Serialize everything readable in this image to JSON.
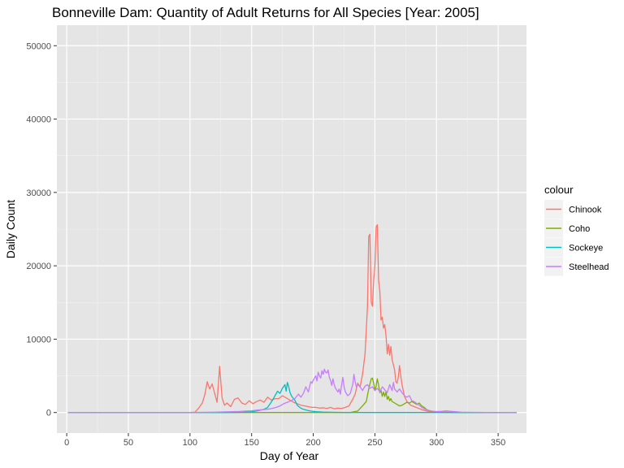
{
  "chart_data": {
    "type": "line",
    "title": "Bonneville Dam: Quantity of Adult Returns for All Species [Year: 2005]",
    "xlabel": "Day of Year",
    "ylabel": "Daily Count",
    "xlim": [
      -8,
      373
    ],
    "ylim": [
      -2800,
      52800
    ],
    "x_ticks": [
      0,
      50,
      100,
      150,
      200,
      250,
      300,
      350
    ],
    "y_ticks": [
      0,
      10000,
      20000,
      30000,
      40000,
      50000
    ],
    "grid": true,
    "background": "#e5e5e5",
    "legend": {
      "title": "colour",
      "position": "right"
    },
    "series": [
      {
        "name": "Chinook",
        "color": "#f8766d",
        "points": [
          [
            1,
            0
          ],
          [
            100,
            0
          ],
          [
            104,
            50
          ],
          [
            107,
            600
          ],
          [
            110,
            1300
          ],
          [
            112,
            2400
          ],
          [
            114,
            4200
          ],
          [
            116,
            3200
          ],
          [
            118,
            3900
          ],
          [
            120,
            2600
          ],
          [
            122,
            1400
          ],
          [
            124,
            6300
          ],
          [
            126,
            2000
          ],
          [
            128,
            1000
          ],
          [
            130,
            1300
          ],
          [
            133,
            800
          ],
          [
            136,
            1800
          ],
          [
            139,
            2000
          ],
          [
            142,
            1300
          ],
          [
            145,
            1100
          ],
          [
            148,
            1600
          ],
          [
            151,
            1200
          ],
          [
            154,
            1500
          ],
          [
            157,
            1700
          ],
          [
            160,
            1400
          ],
          [
            163,
            2100
          ],
          [
            166,
            1700
          ],
          [
            169,
            1900
          ],
          [
            172,
            1900
          ],
          [
            175,
            2300
          ],
          [
            178,
            2000
          ],
          [
            181,
            1700
          ],
          [
            184,
            1400
          ],
          [
            187,
            1200
          ],
          [
            190,
            1000
          ],
          [
            193,
            900
          ],
          [
            196,
            800
          ],
          [
            199,
            700
          ],
          [
            202,
            700
          ],
          [
            205,
            600
          ],
          [
            208,
            650
          ],
          [
            211,
            550
          ],
          [
            214,
            700
          ],
          [
            217,
            500
          ],
          [
            220,
            600
          ],
          [
            223,
            550
          ],
          [
            226,
            700
          ],
          [
            229,
            900
          ],
          [
            232,
            1800
          ],
          [
            234,
            2500
          ],
          [
            236,
            4000
          ],
          [
            238,
            3500
          ],
          [
            240,
            5200
          ],
          [
            242,
            8000
          ],
          [
            244,
            14500
          ],
          [
            245,
            24000
          ],
          [
            246,
            24300
          ],
          [
            247,
            15000
          ],
          [
            248,
            14500
          ],
          [
            249,
            18000
          ],
          [
            250,
            20000
          ],
          [
            251,
            25300
          ],
          [
            252,
            25600
          ],
          [
            253,
            18000
          ],
          [
            254,
            16500
          ],
          [
            255,
            12600
          ],
          [
            256,
            13000
          ],
          [
            257,
            11500
          ],
          [
            258,
            12000
          ],
          [
            259,
            10500
          ],
          [
            260,
            8000
          ],
          [
            261,
            9300
          ],
          [
            262,
            7800
          ],
          [
            263,
            9000
          ],
          [
            264,
            7200
          ],
          [
            265,
            6500
          ],
          [
            266,
            5800
          ],
          [
            267,
            4200
          ],
          [
            268,
            4000
          ],
          [
            269,
            4800
          ],
          [
            270,
            6400
          ],
          [
            271,
            5000
          ],
          [
            272,
            3800
          ],
          [
            274,
            2200
          ],
          [
            276,
            1500
          ],
          [
            279,
            1000
          ],
          [
            282,
            800
          ],
          [
            285,
            600
          ],
          [
            288,
            400
          ],
          [
            292,
            200
          ],
          [
            296,
            100
          ],
          [
            300,
            60
          ],
          [
            310,
            30
          ],
          [
            320,
            10
          ],
          [
            335,
            0
          ],
          [
            365,
            0
          ]
        ]
      },
      {
        "name": "Coho",
        "color": "#7cae00",
        "points": [
          [
            1,
            0
          ],
          [
            230,
            0
          ],
          [
            236,
            200
          ],
          [
            240,
            900
          ],
          [
            243,
            1500
          ],
          [
            245,
            3200
          ],
          [
            247,
            4600
          ],
          [
            248,
            4700
          ],
          [
            249,
            4000
          ],
          [
            250,
            3000
          ],
          [
            251,
            3600
          ],
          [
            252,
            4600
          ],
          [
            253,
            3700
          ],
          [
            254,
            2700
          ],
          [
            255,
            3000
          ],
          [
            256,
            2200
          ],
          [
            257,
            2800
          ],
          [
            258,
            2200
          ],
          [
            259,
            2800
          ],
          [
            260,
            1800
          ],
          [
            261,
            2200
          ],
          [
            262,
            1600
          ],
          [
            263,
            1900
          ],
          [
            264,
            1500
          ],
          [
            266,
            1300
          ],
          [
            268,
            1100
          ],
          [
            270,
            900
          ],
          [
            272,
            1000
          ],
          [
            274,
            1200
          ],
          [
            276,
            1400
          ],
          [
            278,
            1300
          ],
          [
            280,
            1500
          ],
          [
            282,
            1300
          ],
          [
            284,
            1100
          ],
          [
            286,
            1300
          ],
          [
            288,
            900
          ],
          [
            290,
            700
          ],
          [
            292,
            400
          ],
          [
            295,
            200
          ],
          [
            298,
            100
          ],
          [
            302,
            40
          ],
          [
            310,
            10
          ],
          [
            320,
            0
          ],
          [
            365,
            0
          ]
        ]
      },
      {
        "name": "Sockeye",
        "color": "#00bfc4",
        "points": [
          [
            1,
            0
          ],
          [
            130,
            0
          ],
          [
            140,
            20
          ],
          [
            150,
            100
          ],
          [
            155,
            250
          ],
          [
            160,
            450
          ],
          [
            163,
            700
          ],
          [
            165,
            1200
          ],
          [
            167,
            1700
          ],
          [
            169,
            2300
          ],
          [
            171,
            2900
          ],
          [
            173,
            2600
          ],
          [
            175,
            3300
          ],
          [
            177,
            3800
          ],
          [
            178,
            2900
          ],
          [
            179,
            4100
          ],
          [
            180,
            3600
          ],
          [
            181,
            2800
          ],
          [
            182,
            2400
          ],
          [
            183,
            2100
          ],
          [
            185,
            1700
          ],
          [
            187,
            1000
          ],
          [
            189,
            700
          ],
          [
            191,
            500
          ],
          [
            193,
            400
          ],
          [
            195,
            300
          ],
          [
            198,
            200
          ],
          [
            202,
            120
          ],
          [
            208,
            60
          ],
          [
            215,
            30
          ],
          [
            225,
            10
          ],
          [
            240,
            0
          ],
          [
            365,
            0
          ]
        ]
      },
      {
        "name": "Steelhead",
        "color": "#c77cff",
        "points": [
          [
            1,
            0
          ],
          [
            100,
            0
          ],
          [
            120,
            50
          ],
          [
            140,
            150
          ],
          [
            150,
            250
          ],
          [
            155,
            350
          ],
          [
            160,
            400
          ],
          [
            165,
            500
          ],
          [
            170,
            700
          ],
          [
            173,
            900
          ],
          [
            176,
            1200
          ],
          [
            179,
            1400
          ],
          [
            182,
            1600
          ],
          [
            185,
            1900
          ],
          [
            188,
            2500
          ],
          [
            190,
            2100
          ],
          [
            192,
            2600
          ],
          [
            194,
            3500
          ],
          [
            196,
            2800
          ],
          [
            198,
            4200
          ],
          [
            199,
            4000
          ],
          [
            200,
            4400
          ],
          [
            202,
            5000
          ],
          [
            203,
            4300
          ],
          [
            204,
            5500
          ],
          [
            205,
            5000
          ],
          [
            206,
            4700
          ],
          [
            207,
            5700
          ],
          [
            208,
            5200
          ],
          [
            209,
            5900
          ],
          [
            210,
            5500
          ],
          [
            211,
            5400
          ],
          [
            212,
            5800
          ],
          [
            213,
            4800
          ],
          [
            214,
            4400
          ],
          [
            215,
            3700
          ],
          [
            216,
            4600
          ],
          [
            217,
            3800
          ],
          [
            218,
            3300
          ],
          [
            220,
            2800
          ],
          [
            221,
            3200
          ],
          [
            222,
            2500
          ],
          [
            223,
            3700
          ],
          [
            224,
            4800
          ],
          [
            225,
            3500
          ],
          [
            226,
            2800
          ],
          [
            228,
            2300
          ],
          [
            230,
            2600
          ],
          [
            232,
            3800
          ],
          [
            233,
            5200
          ],
          [
            234,
            4200
          ],
          [
            235,
            3500
          ],
          [
            236,
            3800
          ],
          [
            238,
            3500
          ],
          [
            240,
            3000
          ],
          [
            242,
            3600
          ],
          [
            244,
            3800
          ],
          [
            246,
            3300
          ],
          [
            248,
            3500
          ],
          [
            250,
            3000
          ],
          [
            252,
            3300
          ],
          [
            254,
            2800
          ],
          [
            256,
            3500
          ],
          [
            258,
            3100
          ],
          [
            260,
            2700
          ],
          [
            262,
            3800
          ],
          [
            264,
            3000
          ],
          [
            265,
            4100
          ],
          [
            266,
            3200
          ],
          [
            268,
            2800
          ],
          [
            270,
            3200
          ],
          [
            272,
            2700
          ],
          [
            274,
            2300
          ],
          [
            276,
            2100
          ],
          [
            278,
            2300
          ],
          [
            280,
            1600
          ],
          [
            282,
            1500
          ],
          [
            284,
            1200
          ],
          [
            286,
            1000
          ],
          [
            288,
            700
          ],
          [
            290,
            500
          ],
          [
            293,
            300
          ],
          [
            297,
            180
          ],
          [
            300,
            130
          ],
          [
            304,
            160
          ],
          [
            308,
            220
          ],
          [
            312,
            160
          ],
          [
            316,
            100
          ],
          [
            320,
            50
          ],
          [
            330,
            20
          ],
          [
            340,
            5
          ],
          [
            365,
            0
          ]
        ]
      }
    ]
  }
}
